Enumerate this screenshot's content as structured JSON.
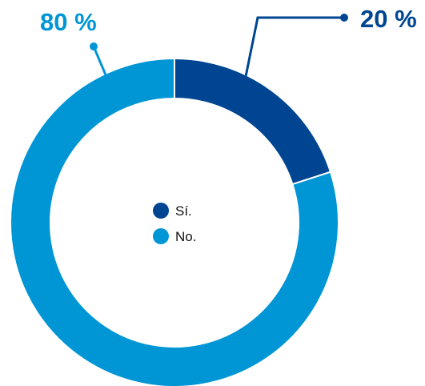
{
  "chart_data": {
    "type": "pie",
    "categories": [
      "Sí.",
      "No."
    ],
    "values": [
      20,
      80
    ],
    "data_labels": [
      "20 %",
      "80 %"
    ],
    "colors": [
      "#004592",
      "#0096d6"
    ],
    "legend": "center"
  }
}
